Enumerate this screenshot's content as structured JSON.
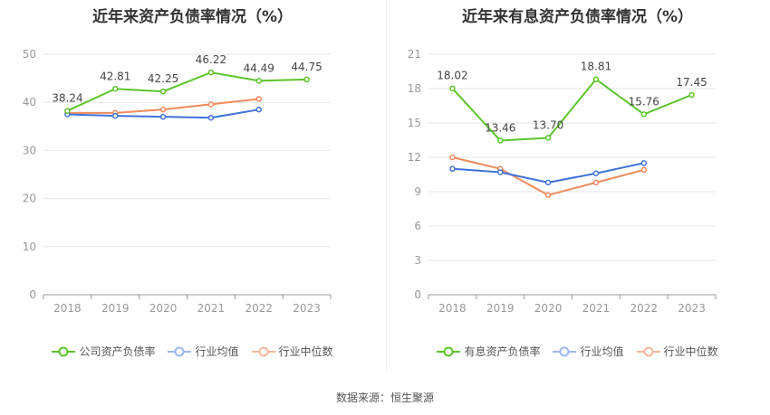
{
  "colors": {
    "company": "#5cc42b",
    "avg": "#3f72d8",
    "median": "#f08a5d",
    "grid": "#e6e6e6",
    "axis": "#999999",
    "text": "#999999",
    "label": "#444444"
  },
  "source_text": "数据来源：恒生聚源",
  "chart_data": [
    {
      "type": "line",
      "title": "近年来资产负债率情况（%）",
      "categories": [
        "2018",
        "2019",
        "2020",
        "2021",
        "2022",
        "2023"
      ],
      "ylim": [
        0,
        50
      ],
      "yticks": [
        0,
        10,
        20,
        30,
        40,
        50
      ],
      "series": [
        {
          "name": "公司资产负债率",
          "color_key": "company",
          "values": [
            38.24,
            42.81,
            42.25,
            46.22,
            44.49,
            44.75
          ],
          "labels": [
            "38.24",
            "42.81",
            "42.25",
            "46.22",
            "44.49",
            "44.75"
          ]
        },
        {
          "name": "行业均值",
          "color_key": "avg",
          "values": [
            37.5,
            37.2,
            37.0,
            36.8,
            38.5,
            null
          ]
        },
        {
          "name": "行业中位数",
          "color_key": "median",
          "values": [
            37.8,
            37.8,
            38.5,
            39.6,
            40.7,
            null
          ]
        }
      ]
    },
    {
      "type": "line",
      "title": "近年来有息资产负债率情况（%）",
      "categories": [
        "2018",
        "2019",
        "2020",
        "2021",
        "2022",
        "2023"
      ],
      "ylim": [
        0,
        21
      ],
      "yticks": [
        0,
        3,
        6,
        9,
        12,
        15,
        18,
        21
      ],
      "series": [
        {
          "name": "有息资产负债率",
          "color_key": "company",
          "values": [
            18.02,
            13.46,
            13.7,
            18.81,
            15.76,
            17.45
          ],
          "labels": [
            "18.02",
            "13.46",
            "13.70",
            "18.81",
            "15.76",
            "17.45"
          ]
        },
        {
          "name": "行业均值",
          "color_key": "avg",
          "values": [
            11.0,
            10.7,
            9.8,
            10.6,
            11.5,
            null
          ]
        },
        {
          "name": "行业中位数",
          "color_key": "median",
          "values": [
            12.0,
            11.0,
            8.7,
            9.8,
            10.9,
            null
          ]
        }
      ]
    }
  ]
}
